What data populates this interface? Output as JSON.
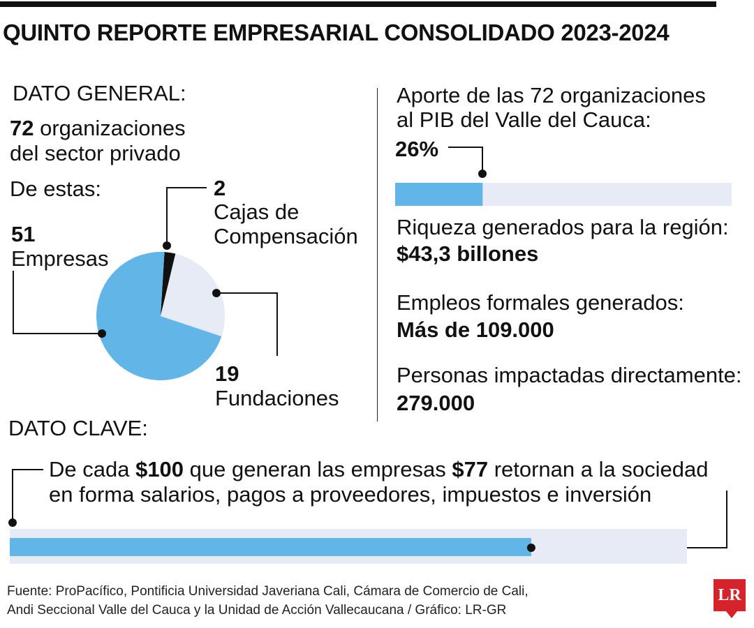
{
  "title": "QUINTO REPORTE EMPRESARIAL CONSOLIDADO 2023-2024",
  "general": {
    "heading": "DATO GENERAL:",
    "total_number": "72",
    "total_text_1": "organizaciones",
    "total_text_2": "del sector privado",
    "subtitle": "De estas:"
  },
  "pie_labels": {
    "cajas_value": "2",
    "cajas_name_1": "Cajas de",
    "cajas_name_2": "Compensación",
    "empresas_value": "51",
    "empresas_name": "Empresas",
    "fundaciones_value": "19",
    "fundaciones_name": "Fundaciones"
  },
  "right": {
    "aporte_label_1": "Aporte de las 72 organizaciones",
    "aporte_label_2": "al PIB del Valle del Cauca:",
    "aporte_value": "26%",
    "riqueza_label": "Riqueza generados para la región:",
    "riqueza_value": "$43,3 billones",
    "empleos_label": "Empleos formales generados:",
    "empleos_value": "Más de 109.000",
    "personas_label": "Personas impactadas directamente:",
    "personas_value": "279.000"
  },
  "clave": {
    "heading": "DATO CLAVE:",
    "line1_a": "De cada ",
    "line1_b": "$100",
    "line1_c": " que generan las empresas ",
    "line1_d": "$77",
    "line1_e": " retornan a la sociedad",
    "line2": "en forma salarios, pagos a proveedores, impuestos e inversión"
  },
  "source_line1": "Fuente: ProPacífico, Pontificia Universidad Javeriana Cali, Cámara de Comercio de Cali,",
  "source_line2": "Andi Seccional Valle del Cauca y la Unidad de Acción Vallecaucana / Gráfico: LR-GR",
  "logo_text": "LR",
  "colors": {
    "blue": "#62b6e7",
    "light": "#e6ebf5",
    "black": "#111111",
    "red": "#d6222a"
  },
  "chart_data": [
    {
      "type": "pie",
      "categories": [
        "Cajas de Compensación",
        "Fundaciones",
        "Empresas"
      ],
      "values": [
        2,
        19,
        51
      ],
      "colors": [
        "#111111",
        "#e6ebf5",
        "#62b6e7"
      ]
    },
    {
      "type": "bar",
      "categories": [
        "Aporte al PIB del Valle del Cauca"
      ],
      "values": [
        26
      ],
      "ylim": [
        0,
        100
      ]
    },
    {
      "type": "bar",
      "categories": [
        "Retorno a la sociedad por cada $100"
      ],
      "values": [
        77
      ],
      "ylim": [
        0,
        100
      ]
    }
  ]
}
